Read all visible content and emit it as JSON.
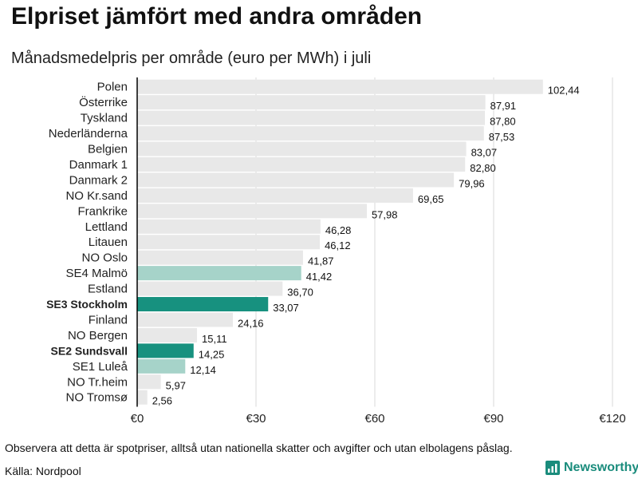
{
  "header": {
    "title": "Elpriset jämfört med andra områden",
    "subtitle": "Månadsmedelpris per område (euro per MWh) i juli"
  },
  "footer": {
    "note": "Observera att detta är spotpriser, alltså utan nationella skatter och avgifter och utan elbolagens påslag.",
    "source": "Källa: Nordpool",
    "brand": "Newsworthy"
  },
  "colors": {
    "default_bar": "#e8e8e8",
    "highlight_strong": "#17917f",
    "highlight_light": "#a6d3c9",
    "gridline": "#d9d9d9",
    "axis": "#000000"
  },
  "chart_data": {
    "type": "bar",
    "orientation": "horizontal",
    "title": "Elpriset jämfört med andra områden",
    "subtitle": "Månadsmedelpris per område (euro per MWh) i juli",
    "xlim": [
      0,
      120
    ],
    "ticks": [
      0,
      30,
      60,
      90,
      120
    ],
    "tick_labels": [
      "€0",
      "€30",
      "€60",
      "€90",
      "€120"
    ],
    "grid": true,
    "bars": [
      {
        "label": "Polen",
        "value": 102.44,
        "value_label": "102,44",
        "style": "default"
      },
      {
        "label": "Österrike",
        "value": 87.91,
        "value_label": "87,91",
        "style": "default"
      },
      {
        "label": "Tyskland",
        "value": 87.8,
        "value_label": "87,80",
        "style": "default"
      },
      {
        "label": "Nederländerna",
        "value": 87.53,
        "value_label": "87,53",
        "style": "default"
      },
      {
        "label": "Belgien",
        "value": 83.07,
        "value_label": "83,07",
        "style": "default"
      },
      {
        "label": "Danmark  1",
        "value": 82.8,
        "value_label": "82,80",
        "style": "default"
      },
      {
        "label": "Danmark  2",
        "value": 79.96,
        "value_label": "79,96",
        "style": "default"
      },
      {
        "label": "NO Kr.sand",
        "value": 69.65,
        "value_label": "69,65",
        "style": "default"
      },
      {
        "label": "Frankrike",
        "value": 57.98,
        "value_label": "57,98",
        "style": "default"
      },
      {
        "label": "Lettland",
        "value": 46.28,
        "value_label": "46,28",
        "style": "default"
      },
      {
        "label": "Litauen",
        "value": 46.12,
        "value_label": "46,12",
        "style": "default"
      },
      {
        "label": "NO Oslo",
        "value": 41.87,
        "value_label": "41,87",
        "style": "default"
      },
      {
        "label": "SE4  Malmö",
        "value": 41.42,
        "value_label": "41,42",
        "style": "light"
      },
      {
        "label": "Estland",
        "value": 36.7,
        "value_label": "36,70",
        "style": "default"
      },
      {
        "label": "SE3 Stockholm",
        "value": 33.07,
        "value_label": "33,07",
        "style": "strong"
      },
      {
        "label": "Finland",
        "value": 24.16,
        "value_label": "24,16",
        "style": "default"
      },
      {
        "label": "NO Bergen",
        "value": 15.11,
        "value_label": "15,11",
        "style": "default"
      },
      {
        "label": "SE2 Sundsvall",
        "value": 14.25,
        "value_label": "14,25",
        "style": "strong"
      },
      {
        "label": "SE1  Luleå",
        "value": 12.14,
        "value_label": "12,14",
        "style": "light"
      },
      {
        "label": "NO Tr.heim",
        "value": 5.97,
        "value_label": "5,97",
        "style": "default"
      },
      {
        "label": "NO Tromsø",
        "value": 2.56,
        "value_label": "2,56",
        "style": "default"
      }
    ]
  }
}
